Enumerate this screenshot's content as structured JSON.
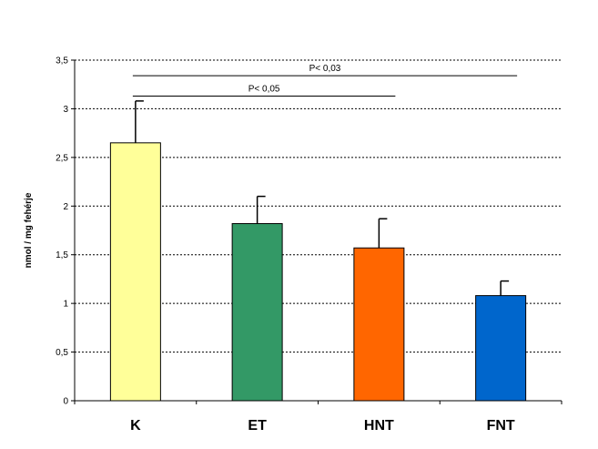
{
  "chart_data": {
    "type": "bar",
    "categories": [
      "K",
      "ET",
      "HNT",
      "FNT"
    ],
    "values": [
      2.65,
      1.82,
      1.57,
      1.08
    ],
    "errors": [
      0.43,
      0.28,
      0.3,
      0.15
    ],
    "colors": [
      "#ffff99",
      "#339966",
      "#ff6600",
      "#0066cc"
    ],
    "title": "",
    "xlabel": "",
    "ylabel": "nmol / mg fehérje",
    "ylim": [
      0,
      3.5
    ],
    "yticks": [
      0,
      0.5,
      1,
      1.5,
      2,
      2.5,
      3,
      3.5
    ],
    "ytick_labels": [
      "0",
      "0,5",
      "1",
      "1,5",
      "2",
      "2,5",
      "3",
      "3,5"
    ],
    "grid": "horizontal dotted",
    "legend": "none",
    "annotations": [
      {
        "text": "P< 0,05",
        "from": "K",
        "to": "HNT",
        "level": 3.13
      },
      {
        "text": "P< 0,03",
        "from": "K",
        "to": "FNT",
        "level": 3.34
      }
    ]
  }
}
